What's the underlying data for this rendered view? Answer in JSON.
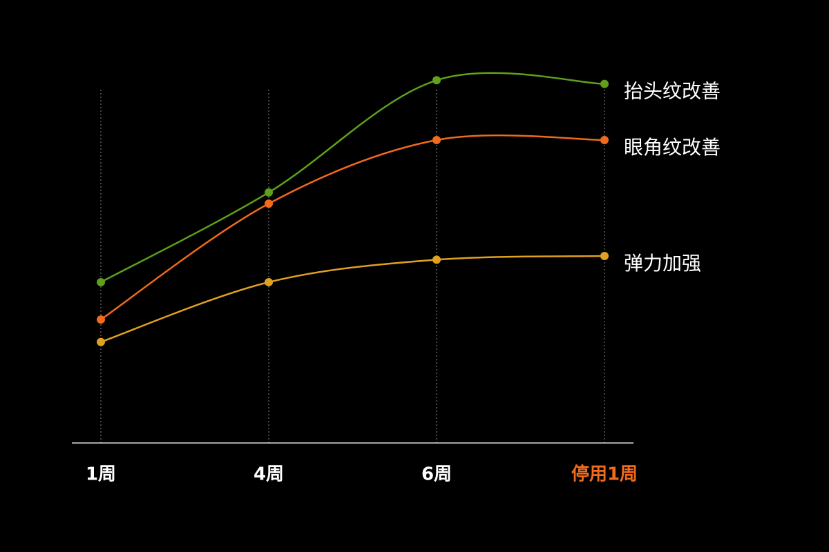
{
  "chart_data": {
    "type": "line",
    "categories": [
      "1周",
      "4周",
      "6周",
      "停用1周"
    ],
    "category_colors": [
      "#ffffff",
      "#ffffff",
      "#ffffff",
      "#f26a1b"
    ],
    "series": [
      {
        "name": "抬头纹改善",
        "color": "#5fa11a",
        "values": [
          43,
          67,
          97,
          96
        ]
      },
      {
        "name": "眼角纹改善",
        "color": "#f26a1b",
        "values": [
          33,
          64,
          81,
          81
        ]
      },
      {
        "name": "弹力加强",
        "color": "#e0a020",
        "values": [
          27,
          43,
          49,
          50
        ]
      }
    ],
    "ylim": [
      0,
      100
    ],
    "grid": true,
    "smooth": true,
    "label_color": "#ffffff"
  }
}
